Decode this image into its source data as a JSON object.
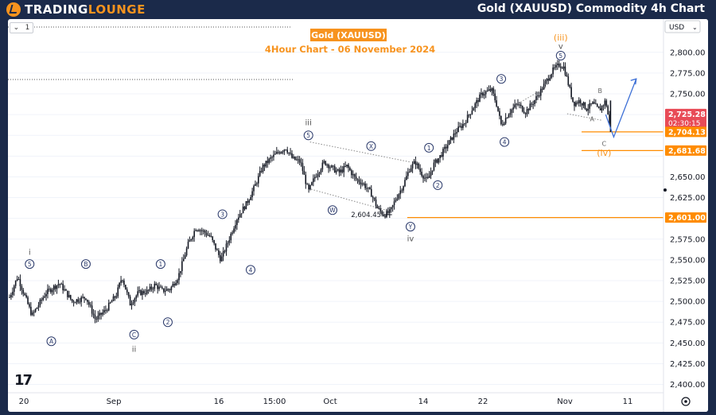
{
  "header": {
    "logo_text_1": "TRADING",
    "logo_text_2": "LOUNGE",
    "title": "Gold (XAUUSD) Commodity 4h Chart"
  },
  "toolbar": {
    "collapse_label": "1",
    "currency_label": "USD"
  },
  "colors": {
    "background": "#1b2a4a",
    "accent": "#f7931e",
    "candle": "#131722",
    "wave_label": "#2b3a6b",
    "price_badge_red": "#e84b57",
    "level_orange": "#ff8c00"
  },
  "chart_data": {
    "type": "candlestick",
    "title_box": "Gold (XAUUSD)",
    "subtitle": "4Hour Chart - 06 November  2024",
    "y_axis": {
      "currency": "USD",
      "ylim": [
        2390,
        2840
      ],
      "ticks": [
        2400,
        2425,
        2450,
        2475,
        2500,
        2525,
        2550,
        2575,
        2600,
        2625,
        2650,
        2675,
        2700,
        2725,
        2750,
        2775,
        2800
      ],
      "tick_labels": [
        "2,400.00",
        "2,425.00",
        "2,450.00",
        "2,475.00",
        "2,500.00",
        "2,525.00",
        "2,550.00",
        "2,575.00",
        "",
        "2,625.00",
        "2,650.00",
        "",
        "",
        "",
        "2,750.00",
        "2,775.00",
        "2,800.00"
      ]
    },
    "x_axis": {
      "tick_labels": [
        "20",
        "Sep",
        "16",
        "15:00",
        "Oct",
        "14",
        "22",
        "Nov",
        "11"
      ]
    },
    "price_badges": [
      {
        "value": 2725.28,
        "label": "2,725.28",
        "sublabel": "02:30:15",
        "color": "#e84b57"
      },
      {
        "value": 2704.13,
        "label": "2,704.13",
        "color": "#ff8c00"
      },
      {
        "value": 2681.68,
        "label": "2,681.68",
        "color": "#ff8c00"
      },
      {
        "value": 2601.0,
        "label": "2,601.00",
        "color": "#ff8c00"
      }
    ],
    "annotation_price": "2,604.45",
    "path": [
      [
        0,
        2505
      ],
      [
        10,
        2530
      ],
      [
        28,
        2483
      ],
      [
        45,
        2510
      ],
      [
        62,
        2522
      ],
      [
        78,
        2500
      ],
      [
        95,
        2505
      ],
      [
        107,
        2478
      ],
      [
        120,
        2490
      ],
      [
        133,
        2508
      ],
      [
        140,
        2530
      ],
      [
        150,
        2497
      ],
      [
        160,
        2510
      ],
      [
        172,
        2512
      ],
      [
        181,
        2520
      ],
      [
        190,
        2513
      ],
      [
        200,
        2515
      ],
      [
        210,
        2530
      ],
      [
        222,
        2568
      ],
      [
        232,
        2589
      ],
      [
        240,
        2585
      ],
      [
        250,
        2578
      ],
      [
        263,
        2550
      ],
      [
        272,
        2572
      ],
      [
        283,
        2600
      ],
      [
        295,
        2618
      ],
      [
        305,
        2638
      ],
      [
        315,
        2662
      ],
      [
        325,
        2672
      ],
      [
        335,
        2680
      ],
      [
        344,
        2685
      ],
      [
        352,
        2672
      ],
      [
        362,
        2668
      ],
      [
        372,
        2632
      ],
      [
        380,
        2650
      ],
      [
        392,
        2668
      ],
      [
        402,
        2660
      ],
      [
        410,
        2655
      ],
      [
        420,
        2663
      ],
      [
        430,
        2648
      ],
      [
        440,
        2642
      ],
      [
        450,
        2630
      ],
      [
        458,
        2612
      ],
      [
        466,
        2604
      ],
      [
        474,
        2608
      ],
      [
        480,
        2622
      ],
      [
        490,
        2640
      ],
      [
        498,
        2660
      ],
      [
        505,
        2668
      ],
      [
        512,
        2655
      ],
      [
        520,
        2645
      ],
      [
        528,
        2665
      ],
      [
        536,
        2675
      ],
      [
        546,
        2690
      ],
      [
        556,
        2705
      ],
      [
        566,
        2715
      ],
      [
        576,
        2732
      ],
      [
        588,
        2750
      ],
      [
        600,
        2755
      ],
      [
        606,
        2738
      ],
      [
        612,
        2712
      ],
      [
        622,
        2728
      ],
      [
        632,
        2738
      ],
      [
        642,
        2728
      ],
      [
        652,
        2740
      ],
      [
        660,
        2752
      ],
      [
        668,
        2765
      ],
      [
        676,
        2778
      ],
      [
        684,
        2785
      ],
      [
        690,
        2782
      ],
      [
        696,
        2760
      ],
      [
        702,
        2738
      ],
      [
        710,
        2742
      ],
      [
        718,
        2732
      ],
      [
        726,
        2738
      ],
      [
        734,
        2730
      ],
      [
        742,
        2742
      ],
      [
        748,
        2706
      ]
    ],
    "wave_labels": [
      {
        "text": "i",
        "price": 2560,
        "t": 25,
        "style": "plain"
      },
      {
        "text": "5",
        "price": 2545,
        "t": 25,
        "style": "circle"
      },
      {
        "text": "A",
        "price": 2452,
        "t": 52,
        "style": "circle"
      },
      {
        "text": "B",
        "price": 2545,
        "t": 95,
        "style": "circle"
      },
      {
        "text": "C",
        "price": 2460,
        "t": 155,
        "style": "circle"
      },
      {
        "text": "ii",
        "price": 2443,
        "t": 155,
        "style": "plain"
      },
      {
        "text": "1",
        "price": 2545,
        "t": 188,
        "style": "circle"
      },
      {
        "text": "2",
        "price": 2475,
        "t": 197,
        "style": "circle"
      },
      {
        "text": "3",
        "price": 2605,
        "t": 265,
        "style": "circle"
      },
      {
        "text": "4",
        "price": 2538,
        "t": 300,
        "style": "circle"
      },
      {
        "text": "iii",
        "price": 2716,
        "t": 372,
        "style": "plain"
      },
      {
        "text": "5",
        "price": 2700,
        "t": 372,
        "style": "circle"
      },
      {
        "text": "X",
        "price": 2687,
        "t": 450,
        "style": "circle"
      },
      {
        "text": "W",
        "price": 2610,
        "t": 402,
        "style": "circle"
      },
      {
        "text": "Y",
        "price": 2590,
        "t": 499,
        "style": "circle"
      },
      {
        "text": "iv",
        "price": 2576,
        "t": 499,
        "style": "plain"
      },
      {
        "text": "1",
        "price": 2685,
        "t": 522,
        "style": "circle"
      },
      {
        "text": "2",
        "price": 2640,
        "t": 533,
        "style": "circle"
      },
      {
        "text": "3",
        "price": 2768,
        "t": 612,
        "style": "circle"
      },
      {
        "text": "4",
        "price": 2692,
        "t": 616,
        "style": "circle"
      },
      {
        "text": "v",
        "price": 2808,
        "t": 686,
        "style": "plain"
      },
      {
        "text": "5",
        "price": 2796,
        "t": 686,
        "style": "circle"
      },
      {
        "text": "(iii)",
        "price": 2818,
        "t": 686,
        "style": "orange"
      },
      {
        "text": "B",
        "price": 2754,
        "t": 735,
        "style": "small"
      },
      {
        "text": "A",
        "price": 2720,
        "t": 725,
        "style": "small"
      },
      {
        "text": "C",
        "price": 2690,
        "t": 740,
        "style": "small"
      },
      {
        "text": "(iv)",
        "price": 2679,
        "t": 740,
        "style": "orange"
      }
    ]
  }
}
